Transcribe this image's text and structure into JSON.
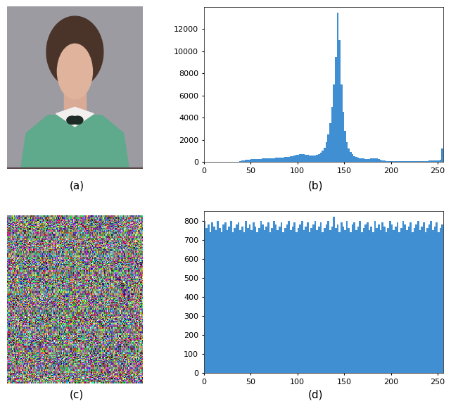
{
  "captions": [
    "(a)",
    "(b)",
    "(c)",
    "(d)"
  ],
  "chart_data": [
    {
      "type": "histogram",
      "color": "#3f8fd2",
      "grid": false,
      "bins": [
        0,
        2,
        4,
        6,
        8,
        10,
        12,
        14,
        16,
        18,
        20,
        22,
        24,
        26,
        28,
        30,
        32,
        34,
        36,
        38,
        40,
        42,
        44,
        46,
        48,
        50,
        52,
        54,
        56,
        58,
        60,
        62,
        64,
        66,
        68,
        70,
        72,
        74,
        76,
        78,
        80,
        82,
        84,
        86,
        88,
        90,
        92,
        94,
        96,
        98,
        100,
        102,
        104,
        106,
        108,
        110,
        112,
        114,
        116,
        118,
        120,
        122,
        124,
        126,
        128,
        130,
        132,
        134,
        136,
        138,
        140,
        142,
        144,
        146,
        148,
        150,
        152,
        154,
        156,
        158,
        160,
        162,
        164,
        166,
        168,
        170,
        172,
        174,
        176,
        178,
        180,
        182,
        184,
        186,
        188,
        190,
        192,
        194,
        196,
        198,
        200,
        202,
        204,
        206,
        208,
        210,
        212,
        214,
        216,
        218,
        220,
        222,
        224,
        226,
        228,
        230,
        232,
        234,
        236,
        238,
        240,
        242,
        244,
        246,
        248,
        250,
        252,
        254,
        256
      ],
      "counts": [
        0,
        0,
        0,
        0,
        0,
        0,
        0,
        0,
        0,
        0,
        0,
        0,
        0,
        0,
        0,
        0,
        10,
        20,
        40,
        80,
        120,
        150,
        180,
        200,
        220,
        240,
        250,
        260,
        270,
        280,
        290,
        300,
        310,
        320,
        330,
        340,
        350,
        360,
        370,
        380,
        390,
        400,
        420,
        440,
        460,
        480,
        500,
        540,
        580,
        620,
        680,
        720,
        740,
        720,
        680,
        620,
        580,
        560,
        560,
        580,
        620,
        700,
        820,
        1000,
        1300,
        1800,
        2500,
        3500,
        5000,
        7000,
        9500,
        13500,
        11000,
        7000,
        4500,
        2800,
        1800,
        1200,
        900,
        700,
        550,
        450,
        400,
        350,
        320,
        300,
        280,
        270,
        280,
        300,
        320,
        340,
        300,
        240,
        180,
        140,
        110,
        90,
        80,
        70,
        60,
        60,
        50,
        50,
        50,
        50,
        50,
        50,
        50,
        50,
        50,
        60,
        60,
        60,
        70,
        70,
        80,
        80,
        90,
        100,
        110,
        120,
        130,
        140,
        150,
        160,
        200,
        1200
      ],
      "xlim": [
        0,
        256
      ],
      "xticks": [
        0,
        50,
        100,
        150,
        200,
        250
      ],
      "ylim": [
        0,
        14000
      ],
      "yticks": [
        0,
        2000,
        4000,
        6000,
        8000,
        10000,
        12000
      ]
    },
    {
      "type": "histogram",
      "color": "#3f8fd2",
      "grid": false,
      "bins": [
        0,
        2,
        4,
        6,
        8,
        10,
        12,
        14,
        16,
        18,
        20,
        22,
        24,
        26,
        28,
        30,
        32,
        34,
        36,
        38,
        40,
        42,
        44,
        46,
        48,
        50,
        52,
        54,
        56,
        58,
        60,
        62,
        64,
        66,
        68,
        70,
        72,
        74,
        76,
        78,
        80,
        82,
        84,
        86,
        88,
        90,
        92,
        94,
        96,
        98,
        100,
        102,
        104,
        106,
        108,
        110,
        112,
        114,
        116,
        118,
        120,
        122,
        124,
        126,
        128,
        130,
        132,
        134,
        136,
        138,
        140,
        142,
        144,
        146,
        148,
        150,
        152,
        154,
        156,
        158,
        160,
        162,
        164,
        166,
        168,
        170,
        172,
        174,
        176,
        178,
        180,
        182,
        184,
        186,
        188,
        190,
        192,
        194,
        196,
        198,
        200,
        202,
        204,
        206,
        208,
        210,
        212,
        214,
        216,
        218,
        220,
        222,
        224,
        226,
        228,
        230,
        232,
        234,
        236,
        238,
        240,
        242,
        244,
        246,
        248,
        250,
        252,
        254,
        256
      ],
      "counts": [
        800,
        760,
        780,
        740,
        790,
        770,
        750,
        800,
        760,
        740,
        780,
        790,
        750,
        770,
        800,
        740,
        760,
        780,
        790,
        750,
        770,
        740,
        800,
        760,
        780,
        750,
        790,
        770,
        740,
        760,
        800,
        780,
        750,
        770,
        790,
        740,
        760,
        800,
        780,
        750,
        770,
        790,
        740,
        760,
        780,
        800,
        750,
        770,
        790,
        740,
        760,
        780,
        800,
        750,
        770,
        790,
        740,
        760,
        780,
        800,
        750,
        770,
        790,
        740,
        760,
        780,
        800,
        750,
        770,
        820,
        760,
        780,
        740,
        790,
        770,
        750,
        800,
        760,
        740,
        780,
        790,
        750,
        770,
        800,
        740,
        760,
        780,
        790,
        750,
        770,
        740,
        800,
        760,
        780,
        750,
        790,
        770,
        740,
        760,
        800,
        780,
        750,
        770,
        790,
        740,
        760,
        800,
        780,
        750,
        770,
        790,
        740,
        760,
        780,
        800,
        750,
        770,
        790,
        740,
        760,
        780,
        800,
        750,
        770,
        790,
        740,
        760,
        780
      ],
      "xlim": [
        0,
        256
      ],
      "xticks": [
        0,
        50,
        100,
        150,
        200,
        250
      ],
      "ylim": [
        0,
        850
      ],
      "yticks": [
        0,
        100,
        200,
        300,
        400,
        500,
        600,
        700,
        800
      ]
    }
  ]
}
